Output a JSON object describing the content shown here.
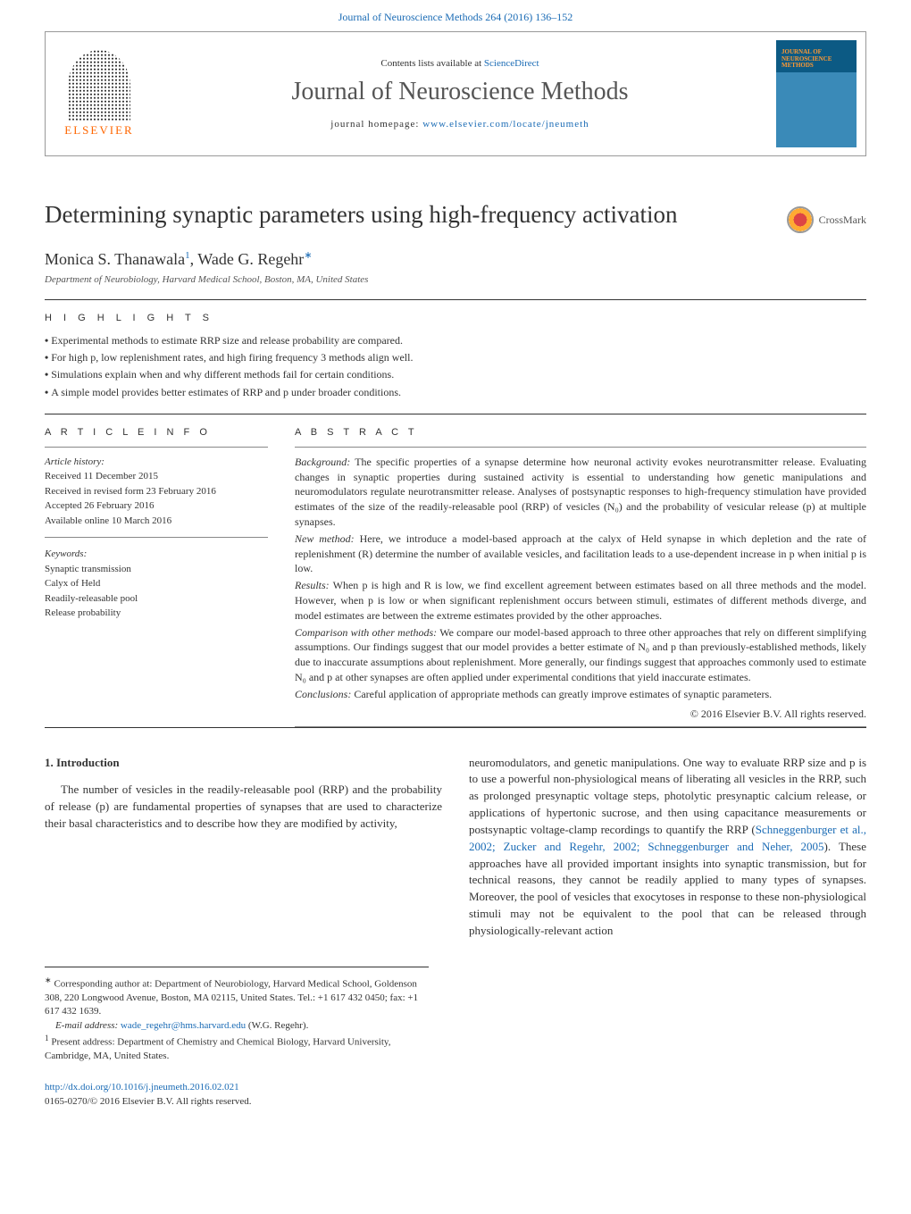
{
  "top_citation": "Journal of Neuroscience Methods 264 (2016) 136–152",
  "header": {
    "contents_prefix": "Contents lists available at ",
    "contents_link": "ScienceDirect",
    "journal_title": "Journal of Neuroscience Methods",
    "homepage_prefix": "journal homepage: ",
    "homepage_link": "www.elsevier.com/locate/jneumeth",
    "elsevier_text": "ELSEVIER",
    "cover_text_line1": "JOURNAL OF",
    "cover_text_line2": "NEUROSCIENCE",
    "cover_text_line3": "METHODS"
  },
  "article": {
    "title": "Determining synaptic parameters using high-frequency activation",
    "crossmark_label": "CrossMark",
    "authors_html": "Monica S. Thanawala",
    "author1_sup": "1",
    "author2": ", Wade G. Regehr",
    "author2_sup": "∗",
    "affiliation": "Department of Neurobiology, Harvard Medical School, Boston, MA, United States"
  },
  "highlights": {
    "heading": "H I G H L I G H T S",
    "items": [
      "Experimental methods to estimate RRP size and release probability are compared.",
      "For high p, low replenishment rates, and high firing frequency 3 methods align well.",
      "Simulations explain when and why different methods fail for certain conditions.",
      "A simple model provides better estimates of RRP and p under broader conditions."
    ]
  },
  "info": {
    "heading": "A R T I C L E   I N F O",
    "history_label": "Article history:",
    "history": [
      "Received 11 December 2015",
      "Received in revised form 23 February 2016",
      "Accepted 26 February 2016",
      "Available online 10 March 2016"
    ],
    "keywords_label": "Keywords:",
    "keywords": [
      "Synaptic transmission",
      "Calyx of Held",
      "Readily-releasable pool",
      "Release probability"
    ]
  },
  "abstract": {
    "heading": "A B S T R A C T",
    "segments": [
      {
        "label": "Background:",
        "text": " The specific properties of a synapse determine how neuronal activity evokes neurotransmitter release. Evaluating changes in synaptic properties during sustained activity is essential to understanding how genetic manipulations and neuromodulators regulate neurotransmitter release. Analyses of postsynaptic responses to high-frequency stimulation have provided estimates of the size of the readily-releasable pool (RRP) of vesicles (N₀) and the probability of vesicular release (p) at multiple synapses."
      },
      {
        "label": "New method:",
        "text": " Here, we introduce a model-based approach at the calyx of Held synapse in which depletion and the rate of replenishment (R) determine the number of available vesicles, and facilitation leads to a use-dependent increase in p when initial p is low."
      },
      {
        "label": "Results:",
        "text": " When p is high and R is low, we find excellent agreement between estimates based on all three methods and the model. However, when p is low or when significant replenishment occurs between stimuli, estimates of different methods diverge, and model estimates are between the extreme estimates provided by the other approaches."
      },
      {
        "label": "Comparison with other methods:",
        "text": " We compare our model-based approach to three other approaches that rely on different simplifying assumptions. Our findings suggest that our model provides a better estimate of N₀ and p than previously-established methods, likely due to inaccurate assumptions about replenishment. More generally, our findings suggest that approaches commonly used to estimate N₀ and p at other synapses are often applied under experimental conditions that yield inaccurate estimates."
      },
      {
        "label": "Conclusions:",
        "text": " Careful application of appropriate methods can greatly improve estimates of synaptic parameters."
      }
    ],
    "copyright": "© 2016 Elsevier B.V. All rights reserved."
  },
  "introduction": {
    "heading": "1. Introduction",
    "col1": "The number of vesicles in the readily-releasable pool (RRP) and the probability of release (p) are fundamental properties of synapses that are used to characterize their basal characteristics and to describe how they are modified by activity,",
    "col2_pre": "neuromodulators, and genetic manipulations. One way to evaluate RRP size and p is to use a powerful non-physiological means of liberating all vesicles in the RRP, such as prolonged presynaptic voltage steps, photolytic presynaptic calcium release, or applications of hypertonic sucrose, and then using capacitance measurements or postsynaptic voltage-clamp recordings to quantify the RRP (",
    "col2_link": "Schneggenburger et al., 2002; Zucker and Regehr, 2002; Schneggenburger and Neher, 2005",
    "col2_post": "). These approaches have all provided important insights into synaptic transmission, but for technical reasons, they cannot be readily applied to many types of synapses. Moreover, the pool of vesicles that exocytoses in response to these non-physiological stimuli may not be equivalent to the pool that can be released through physiologically-relevant action"
  },
  "footnotes": {
    "corr_symbol": "∗",
    "corr": " Corresponding author at: Department of Neurobiology, Harvard Medical School, Goldenson 308, 220 Longwood Avenue, Boston, MA 02115, United States. Tel.: +1 617 432 0450; fax: +1 617 432 1639.",
    "email_label": "E-mail address: ",
    "email": "wade_regehr@hms.harvard.edu",
    "email_suffix": " (W.G. Regehr).",
    "present_symbol": "1",
    "present": " Present address: Department of Chemistry and Chemical Biology, Harvard University, Cambridge, MA, United States."
  },
  "doi": {
    "link": "http://dx.doi.org/10.1016/j.jneumeth.2016.02.021",
    "copyright_line": "0165-0270/© 2016 Elsevier B.V. All rights reserved."
  }
}
